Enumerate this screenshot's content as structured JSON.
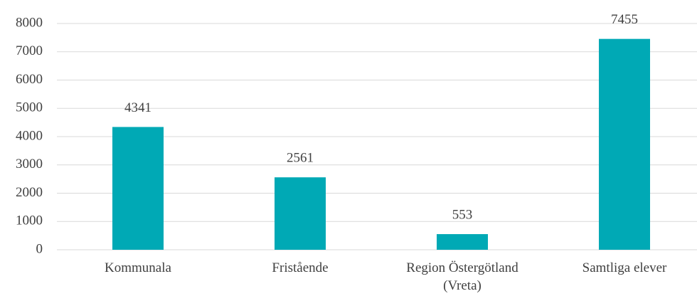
{
  "chart_data": {
    "type": "bar",
    "categories": [
      "Kommunala",
      "Fristående",
      "Region Östergötland (Vreta)",
      "Samtliga elever"
    ],
    "values": [
      4341,
      2561,
      553,
      7455
    ],
    "color": "#00a9b5",
    "ylim": [
      0,
      8000
    ],
    "yticks": [
      0,
      1000,
      2000,
      3000,
      4000,
      5000,
      6000,
      7000,
      8000
    ],
    "grid": true
  }
}
